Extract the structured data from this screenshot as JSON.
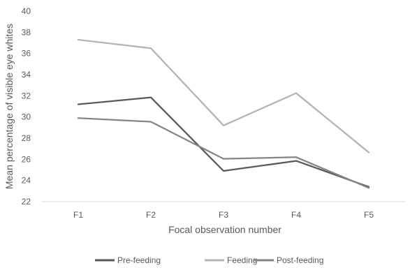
{
  "chart_data": {
    "type": "line",
    "categories": [
      "F1",
      "F2",
      "F3",
      "F4",
      "F5"
    ],
    "series": [
      {
        "name": "Pre-feeding",
        "values": [
          31.2,
          31.85,
          24.9,
          25.85,
          23.4
        ],
        "color": "#595959"
      },
      {
        "name": "Feeding",
        "values": [
          37.3,
          36.5,
          29.2,
          32.25,
          26.65
        ],
        "color": "#b3b3b3"
      },
      {
        "name": "Post-feeding",
        "values": [
          29.9,
          29.55,
          26.05,
          26.2,
          23.3
        ],
        "color": "#858585"
      }
    ],
    "xlabel": "Focal observation number",
    "ylabel": "Mean percentage of visible eye whites",
    "ylim": [
      22,
      40
    ],
    "yticks": [
      22,
      24,
      26,
      28,
      30,
      32,
      34,
      36,
      38,
      40
    ],
    "grid": false,
    "legend_position": "bottom",
    "axis_color": "#d9d9d9",
    "text_color": "#595959"
  }
}
